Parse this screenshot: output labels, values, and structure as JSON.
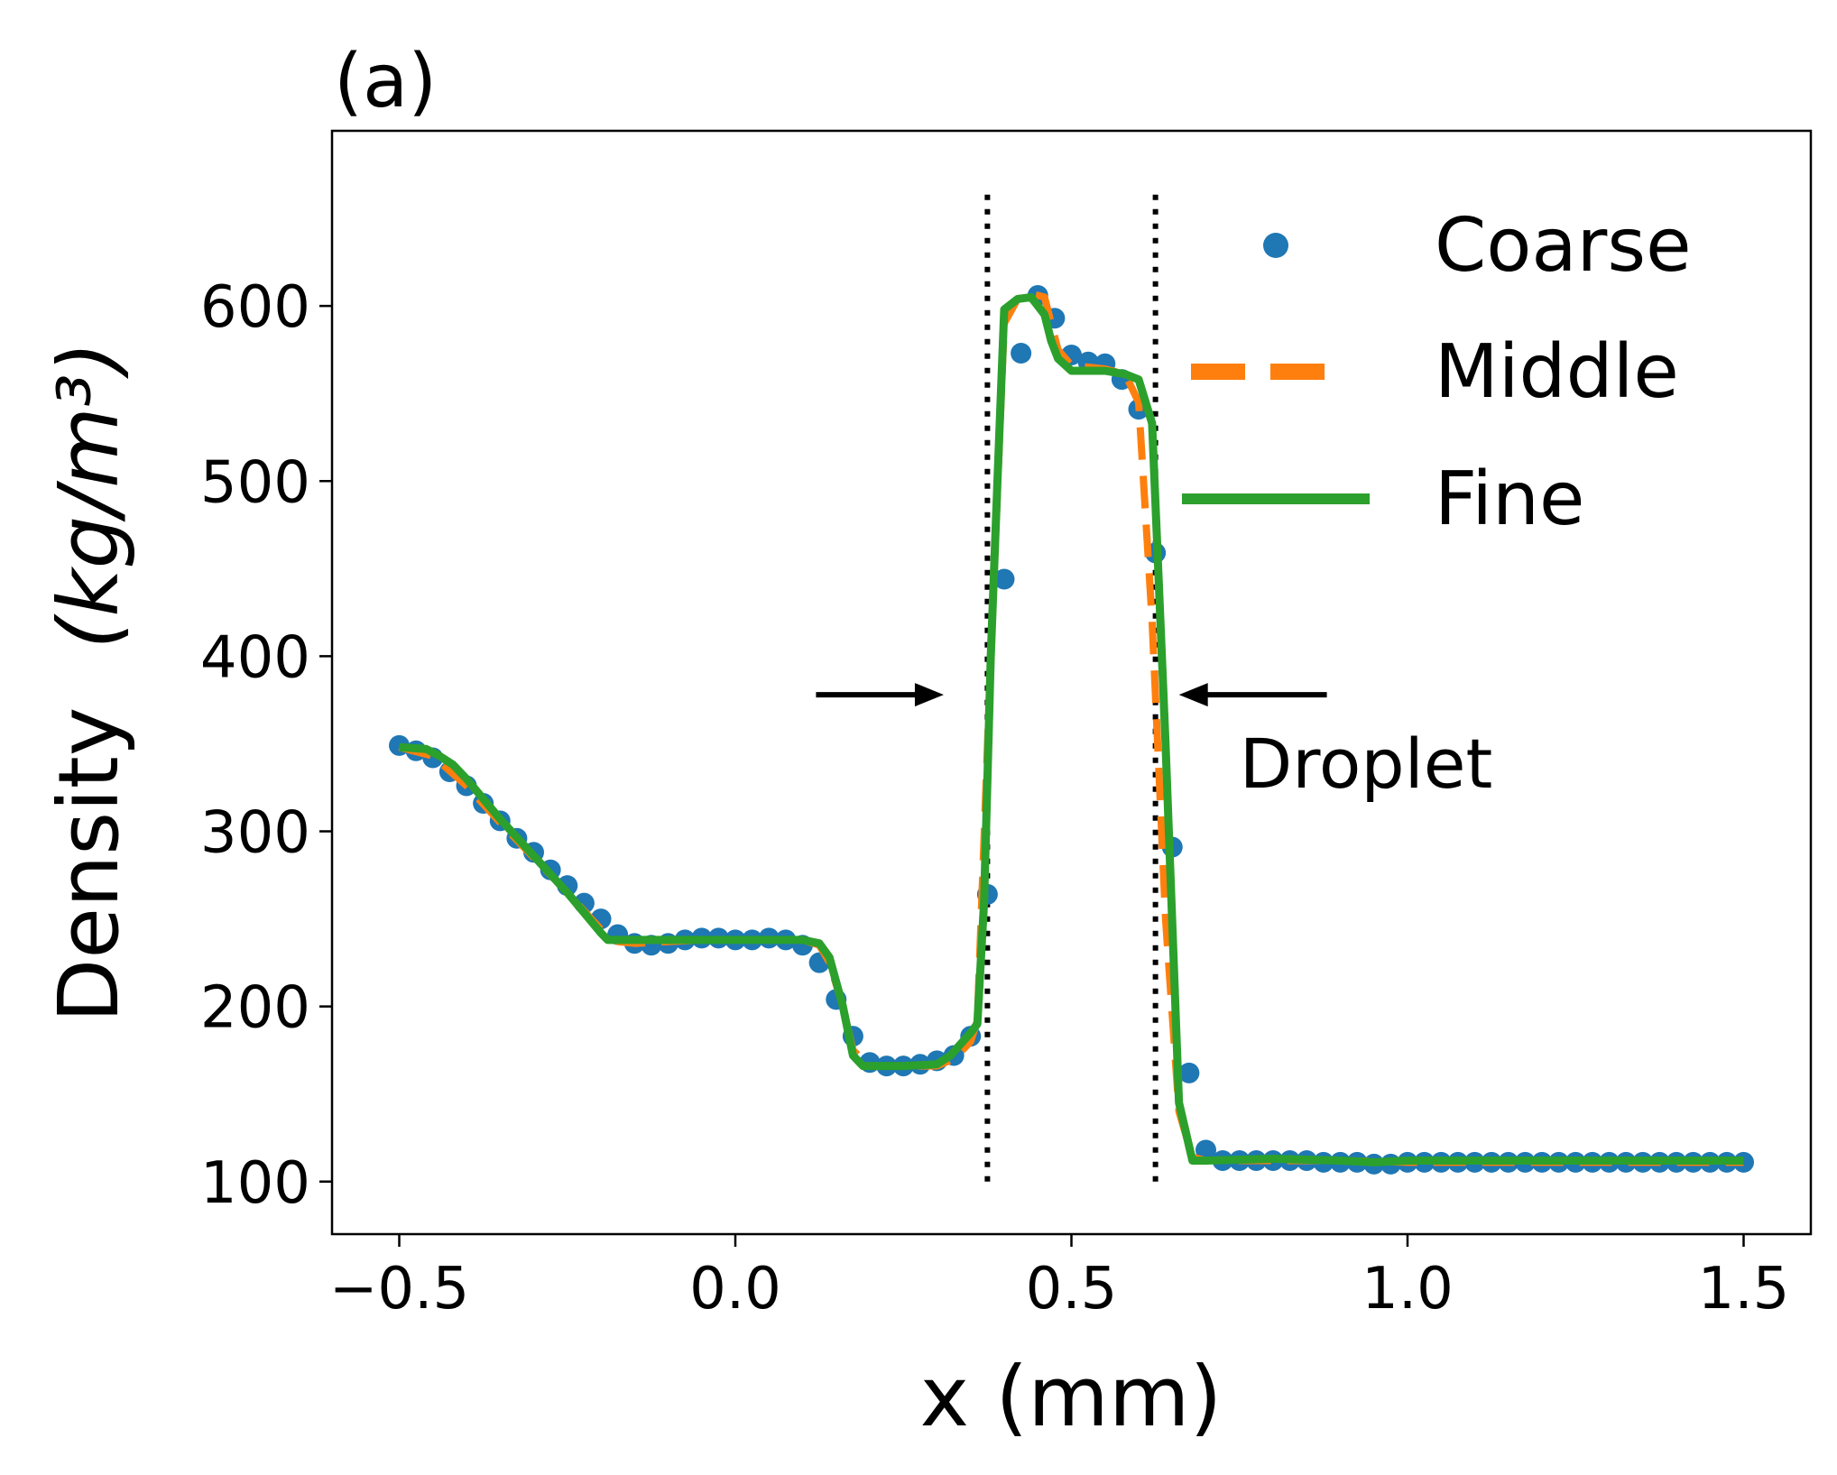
{
  "chart_data": {
    "type": "line",
    "panel_label": "(a)",
    "xlabel": "x (mm)",
    "ylabel": "Density",
    "ylabel_unit": "(kg/m³)",
    "xlim": [
      -0.6,
      1.6
    ],
    "ylim": [
      70,
      700
    ],
    "xticks": [
      -0.5,
      0.0,
      0.5,
      1.0,
      1.5
    ],
    "xtick_labels": [
      "−0.5",
      "0.0",
      "0.5",
      "1.0",
      "1.5"
    ],
    "yticks": [
      100,
      200,
      300,
      400,
      500,
      600
    ],
    "ytick_labels": [
      "100",
      "200",
      "300",
      "400",
      "500",
      "600"
    ],
    "grid": false,
    "legend_position": "top-right",
    "series": [
      {
        "name": "Coarse",
        "style": "markers",
        "color": "#1f77b4",
        "x": [
          -0.5,
          -0.475,
          -0.45,
          -0.425,
          -0.4,
          -0.375,
          -0.35,
          -0.325,
          -0.3,
          -0.275,
          -0.25,
          -0.225,
          -0.2,
          -0.175,
          -0.15,
          -0.125,
          -0.1,
          -0.075,
          -0.05,
          -0.025,
          0.0,
          0.025,
          0.05,
          0.075,
          0.1,
          0.125,
          0.15,
          0.175,
          0.2,
          0.225,
          0.25,
          0.275,
          0.3,
          0.325,
          0.35,
          0.375,
          0.4,
          0.425,
          0.45,
          0.475,
          0.5,
          0.525,
          0.55,
          0.575,
          0.6,
          0.625,
          0.65,
          0.675,
          0.7,
          0.725,
          0.75,
          0.775,
          0.8,
          0.825,
          0.85,
          0.875,
          0.9,
          0.925,
          0.95,
          0.975,
          1.0,
          1.025,
          1.05,
          1.075,
          1.1,
          1.125,
          1.15,
          1.175,
          1.2,
          1.225,
          1.25,
          1.275,
          1.3,
          1.325,
          1.35,
          1.375,
          1.4,
          1.425,
          1.45,
          1.475,
          1.5
        ],
        "y": [
          349,
          346,
          342,
          334,
          326,
          316,
          306,
          296,
          288,
          278,
          269,
          259,
          250,
          241,
          236,
          235,
          236,
          238,
          239,
          239,
          238,
          238,
          239,
          238,
          235,
          225,
          204,
          183,
          168,
          166,
          166,
          167,
          169,
          172,
          183,
          264,
          444,
          573,
          606,
          593,
          572,
          568,
          567,
          558,
          541,
          459,
          291,
          162,
          118,
          112,
          112,
          112,
          112,
          112,
          112,
          111,
          111,
          111,
          110,
          110,
          111,
          111,
          111,
          111,
          111,
          111,
          111,
          111,
          111,
          111,
          111,
          111,
          111,
          111,
          111,
          111,
          111,
          111,
          111,
          111,
          111
        ]
      },
      {
        "name": "Middle",
        "style": "dashed",
        "color": "#ff7f0e",
        "x": [
          -0.5,
          -0.45,
          -0.4,
          -0.35,
          -0.3,
          -0.25,
          -0.2,
          -0.175,
          -0.15,
          -0.1,
          -0.05,
          0.0,
          0.05,
          0.1,
          0.125,
          0.14,
          0.16,
          0.175,
          0.2,
          0.25,
          0.3,
          0.325,
          0.35,
          0.36,
          0.38,
          0.4,
          0.42,
          0.44,
          0.46,
          0.48,
          0.5,
          0.55,
          0.58,
          0.6,
          0.62,
          0.64,
          0.66,
          0.68,
          0.7,
          0.8,
          0.9,
          1.0,
          1.1,
          1.2,
          1.3,
          1.4,
          1.5
        ],
        "y": [
          348,
          343,
          326,
          305,
          285,
          265,
          244,
          237,
          236,
          237,
          238,
          238,
          238,
          238,
          235,
          225,
          200,
          175,
          166,
          166,
          166,
          170,
          180,
          192,
          400,
          590,
          604,
          607,
          605,
          575,
          566,
          564,
          561,
          545,
          420,
          250,
          140,
          114,
          112,
          112,
          112,
          111,
          111,
          111,
          111,
          111,
          111
        ]
      },
      {
        "name": "Fine",
        "style": "solid",
        "color": "#2ca02c",
        "x": [
          -0.5,
          -0.46,
          -0.44,
          -0.42,
          -0.4,
          -0.35,
          -0.3,
          -0.25,
          -0.2,
          -0.19,
          -0.15,
          -0.1,
          -0.05,
          0.0,
          0.05,
          0.1,
          0.125,
          0.14,
          0.16,
          0.175,
          0.19,
          0.25,
          0.3,
          0.32,
          0.35,
          0.36,
          0.37,
          0.38,
          0.39,
          0.4,
          0.42,
          0.44,
          0.46,
          0.47,
          0.48,
          0.5,
          0.55,
          0.58,
          0.6,
          0.62,
          0.64,
          0.66,
          0.68,
          0.7,
          0.8,
          0.9,
          0.95,
          1.0,
          1.1,
          1.2,
          1.3,
          1.4,
          1.5
        ],
        "y": [
          348,
          347,
          343,
          338,
          330,
          307,
          286,
          265,
          242,
          238,
          238,
          238,
          238,
          238,
          238,
          238,
          236,
          228,
          200,
          172,
          166,
          166,
          167,
          172,
          185,
          190,
          260,
          400,
          500,
          598,
          604,
          605,
          595,
          580,
          570,
          563,
          563,
          561,
          558,
          533,
          350,
          145,
          112,
          112,
          113,
          112,
          111,
          112,
          112,
          112,
          112,
          112,
          112
        ]
      }
    ],
    "annotations": [
      {
        "text": "Droplet",
        "x": 0.75,
        "y": 325
      }
    ],
    "arrows": [
      {
        "from_x": 0.12,
        "to_x": 0.31,
        "y": 378
      },
      {
        "from_x": 0.88,
        "to_x": 0.66,
        "y": 378
      }
    ],
    "vlines": [
      {
        "x": 0.375,
        "ymin": 100,
        "ymax": 668,
        "style": "dotted"
      },
      {
        "x": 0.625,
        "ymin": 100,
        "ymax": 668,
        "style": "dotted"
      }
    ]
  }
}
